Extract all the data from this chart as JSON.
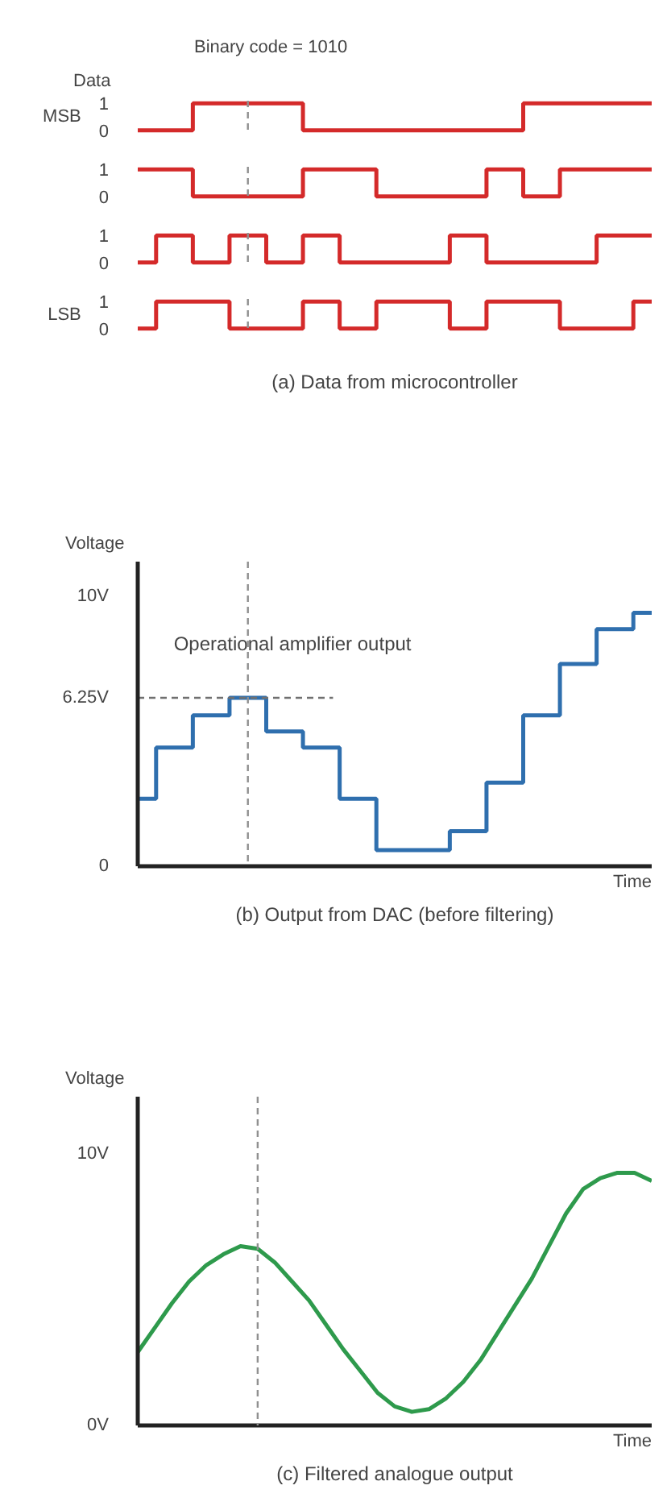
{
  "chart_data": [
    {
      "type": "step",
      "title": "Data",
      "ylabel": "MSB",
      "categories": [
        null,
        null,
        null,
        null,
        null,
        null,
        null,
        null,
        null,
        null,
        null,
        null,
        null,
        null,
        null
      ],
      "ylim": [
        -0.1,
        1.1
      ],
      "yticks": [
        0,
        1
      ],
      "tick_labels": "y",
      "series": [
        {
          "color": "#d42a2a",
          "values": [
            0,
            0,
            1,
            1,
            1,
            0,
            0,
            0,
            0,
            0,
            0,
            1,
            1,
            1,
            1
          ]
        }
      ],
      "annotations": [
        "Binary code = 1010"
      ]
    },
    {
      "type": "step",
      "categories": [
        null,
        null,
        null,
        null,
        null,
        null,
        null,
        null,
        null,
        null,
        null,
        null,
        null,
        null,
        null
      ],
      "ylim": [
        -0.1,
        1.1
      ],
      "yticks": [
        0,
        1
      ],
      "tick_labels": "y",
      "series": [
        {
          "color": "#d42a2a",
          "values": [
            1,
            1,
            0,
            0,
            0,
            1,
            1,
            0,
            0,
            0,
            1,
            0,
            1,
            1,
            1
          ]
        }
      ]
    },
    {
      "type": "step",
      "categories": [
        null,
        null,
        null,
        null,
        null,
        null,
        null,
        null,
        null,
        null,
        null,
        null,
        null,
        null,
        null
      ],
      "ylim": [
        -0.1,
        1.1
      ],
      "yticks": [
        0,
        1
      ],
      "tick_labels": "y",
      "series": [
        {
          "color": "#d42a2a",
          "values": [
            0,
            1,
            0,
            1,
            0,
            1,
            0,
            0,
            0,
            1,
            0,
            0,
            0,
            1,
            1
          ]
        }
      ]
    },
    {
      "type": "step",
      "ylabel": "LSB",
      "categories": [
        null,
        null,
        null,
        null,
        null,
        null,
        null,
        null,
        null,
        null,
        null,
        null,
        null,
        null,
        null
      ],
      "ylim": [
        -0.1,
        1.1
      ],
      "yticks": [
        0,
        1
      ],
      "tick_labels": "y",
      "series": [
        {
          "color": "#d42a2a",
          "values": [
            0,
            1,
            1,
            0,
            0,
            1,
            0,
            1,
            1,
            0,
            1,
            1,
            0,
            0,
            1
          ]
        }
      ],
      "annotations": [
        "(a) Data from microcontroller"
      ]
    },
    {
      "type": "step",
      "ylabel": "Voltage",
      "xlabel": "Time",
      "categories": [
        null,
        null,
        null,
        null,
        null,
        null,
        null,
        null,
        null,
        null,
        null,
        null,
        null,
        null,
        null
      ],
      "ylim": [
        0,
        11.3
      ],
      "yticks": [
        0,
        {
          "value": 6.25,
          "label": "6.25V"
        },
        {
          "value": 10,
          "label": "10V"
        }
      ],
      "tick_labels": "y",
      "series": [
        {
          "name": "Operational amplifier output",
          "color": "#2f6fae",
          "values": [
            2.5,
            4.4,
            5.6,
            6.25,
            5,
            4.4,
            2.5,
            0.6,
            0.6,
            1.3,
            3.1,
            5.6,
            7.5,
            8.8,
            9.4
          ]
        }
      ],
      "ref_lines": [
        {
          "axis": "y",
          "value": 6.25,
          "color": "#707070",
          "line_style": "dashed"
        }
      ],
      "annotations": [
        "(b) Output from DAC (before filtering)"
      ]
    },
    {
      "type": "line",
      "ylabel": "Voltage",
      "xlabel": "Time",
      "categories": [
        null,
        null,
        null,
        null,
        null,
        null,
        null,
        null,
        null,
        null,
        null,
        null,
        null,
        null,
        null,
        null,
        null,
        null,
        null,
        null,
        null,
        null,
        null,
        null,
        null,
        null,
        null,
        null,
        null,
        null,
        null
      ],
      "ylim": [
        0,
        12.1
      ],
      "yticks": [
        {
          "value": 0,
          "label": "0V"
        },
        {
          "value": 10,
          "label": "10V"
        }
      ],
      "tick_labels": "y",
      "series": [
        {
          "color": "#2e9a4c",
          "values": [
            2.7,
            3.6,
            4.5,
            5.3,
            5.9,
            6.3,
            6.6,
            6.5,
            6.0,
            5.3,
            4.6,
            3.7,
            2.8,
            2.0,
            1.2,
            0.7,
            0.5,
            0.6,
            1.0,
            1.6,
            2.4,
            3.4,
            4.4,
            5.4,
            6.6,
            7.8,
            8.7,
            9.1,
            9.3,
            9.3,
            9.0
          ]
        }
      ],
      "annotations": [
        "(c) Filtered analogue output"
      ]
    }
  ]
}
